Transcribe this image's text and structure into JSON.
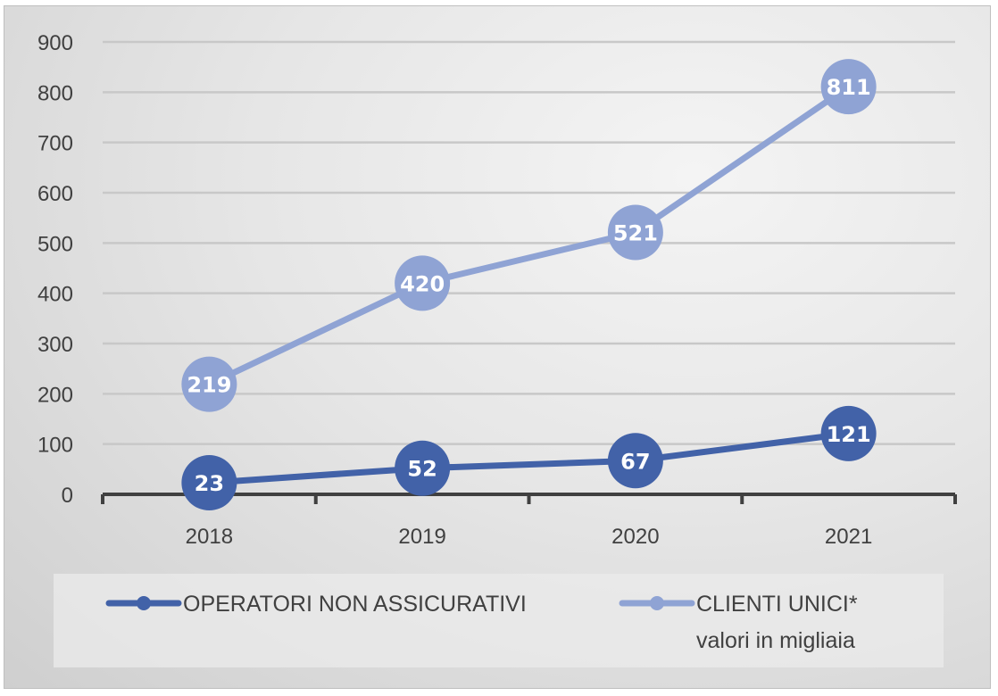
{
  "chart_data": {
    "type": "line",
    "title": "",
    "xlabel": "",
    "ylabel": "",
    "categories": [
      "2018",
      "2019",
      "2020",
      "2021"
    ],
    "ylim": [
      0,
      900
    ],
    "yticks": [
      "0",
      "100",
      "200",
      "300",
      "400",
      "500",
      "600",
      "700",
      "800",
      "900"
    ],
    "grid": true,
    "series": [
      {
        "name": "OPERATORI NON ASSICURATIVI",
        "values": [
          23,
          52,
          67,
          121
        ],
        "color": "#4262a8"
      },
      {
        "name": "CLIENTI UNICI*",
        "values": [
          219,
          420,
          521,
          811
        ],
        "color": "#8fa3d4"
      }
    ],
    "legend_position": "bottom",
    "annotation": "valori in migliaia"
  }
}
